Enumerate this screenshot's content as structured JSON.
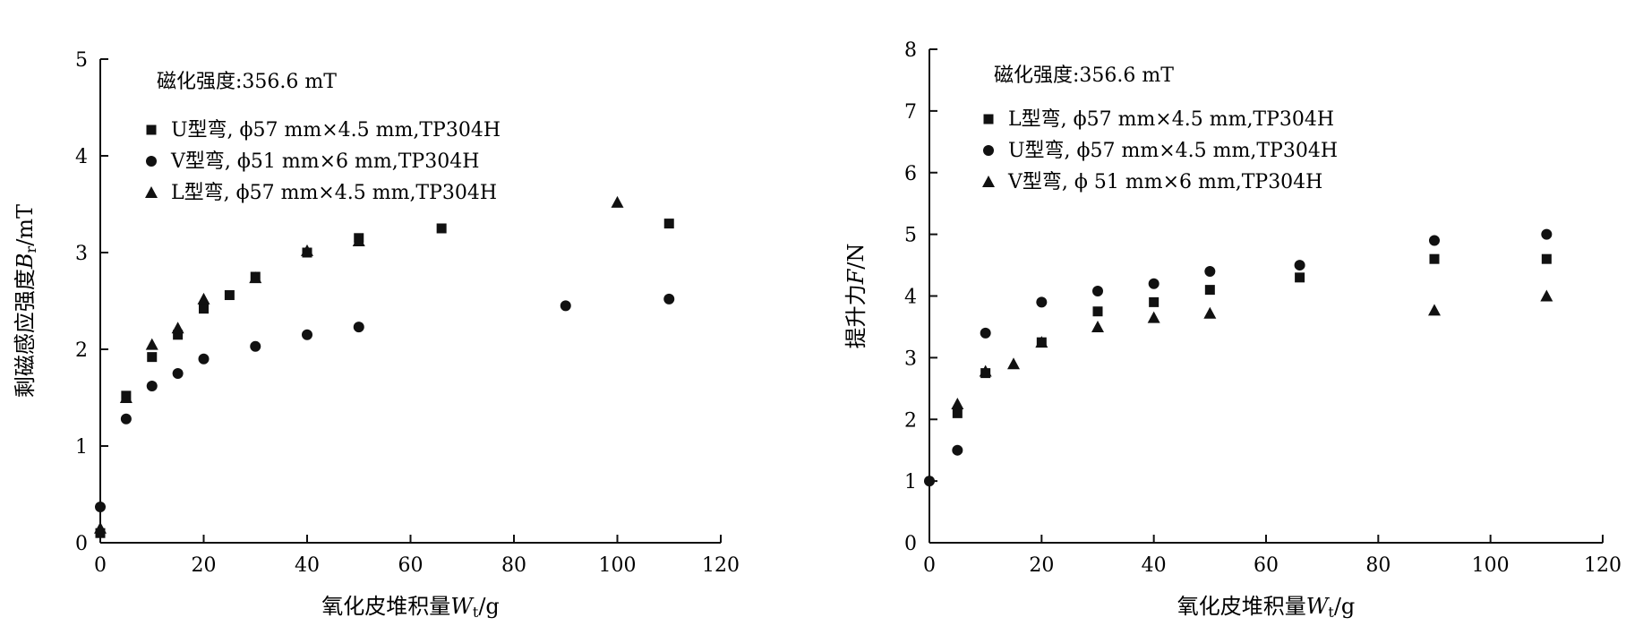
{
  "chart_data": [
    {
      "type": "scatter",
      "annotation": "磁化强度:356.6 mT",
      "xlabel": "氧化皮堆积量Wt/g",
      "xlabel_parts": {
        "main": "氧化皮堆积量",
        "symbol": "W",
        "sub": "t",
        "unit": "/g"
      },
      "ylabel": "剩磁感应强度Br/mT",
      "ylabel_parts": {
        "main": "剩磁感应强度",
        "symbol": "B",
        "sub": "r",
        "unit": "/mT"
      },
      "xlim": [
        0,
        120
      ],
      "ylim": [
        0,
        5
      ],
      "xticks": [
        "0",
        "20",
        "40",
        "60",
        "80",
        "100",
        "120"
      ],
      "yticks": [
        "0",
        "1",
        "2",
        "3",
        "4",
        "5"
      ],
      "grid": false,
      "legend_position": "top-left",
      "series": [
        {
          "name": "U型弯, ϕ57 mm×4.5 mm,TP304H",
          "marker": "square",
          "points": [
            [
              0,
              0.1
            ],
            [
              5,
              1.52
            ],
            [
              10,
              1.92
            ],
            [
              15,
              2.15
            ],
            [
              20,
              2.42
            ],
            [
              25,
              2.56
            ],
            [
              30,
              2.75
            ],
            [
              40,
              3.0
            ],
            [
              50,
              3.15
            ],
            [
              66,
              3.25
            ],
            [
              110,
              3.3
            ]
          ]
        },
        {
          "name": "V型弯, ϕ51 mm×6 mm,TP304H",
          "marker": "circle",
          "points": [
            [
              0,
              0.37
            ],
            [
              5,
              1.28
            ],
            [
              10,
              1.62
            ],
            [
              15,
              1.75
            ],
            [
              20,
              1.9
            ],
            [
              30,
              2.03
            ],
            [
              40,
              2.15
            ],
            [
              50,
              2.23
            ],
            [
              90,
              2.45
            ],
            [
              110,
              2.52
            ]
          ]
        },
        {
          "name": "L型弯, ϕ57 mm×4.5 mm,TP304H",
          "marker": "triangle",
          "points": [
            [
              0,
              0.15
            ],
            [
              5,
              1.5
            ],
            [
              10,
              2.05
            ],
            [
              15,
              2.22
            ],
            [
              20,
              2.52
            ],
            [
              30,
              2.74
            ],
            [
              40,
              3.02
            ],
            [
              50,
              3.12
            ],
            [
              100,
              3.52
            ]
          ]
        }
      ]
    },
    {
      "type": "scatter",
      "annotation": "磁化强度:356.6 mT",
      "xlabel": "氧化皮堆积量Wt/g",
      "xlabel_parts": {
        "main": "氧化皮堆积量",
        "symbol": "W",
        "sub": "t",
        "unit": "/g"
      },
      "ylabel": "提升力F/N",
      "ylabel_parts": {
        "main": "提升力",
        "symbol": "F",
        "sub": "",
        "unit": "/N"
      },
      "xlim": [
        0,
        120
      ],
      "ylim": [
        0,
        8
      ],
      "xticks": [
        "0",
        "20",
        "40",
        "60",
        "80",
        "100",
        "120"
      ],
      "yticks": [
        "0",
        "1",
        "2",
        "3",
        "4",
        "5",
        "6",
        "7",
        "8"
      ],
      "grid": false,
      "legend_position": "top-left",
      "series": [
        {
          "name": "L型弯, ϕ57 mm×4.5 mm,TP304H",
          "marker": "square",
          "points": [
            [
              5,
              2.1
            ],
            [
              10,
              2.75
            ],
            [
              20,
              3.25
            ],
            [
              30,
              3.75
            ],
            [
              40,
              3.9
            ],
            [
              50,
              4.1
            ],
            [
              66,
              4.3
            ],
            [
              90,
              4.6
            ],
            [
              110,
              4.6
            ]
          ]
        },
        {
          "name": "U型弯, ϕ57 mm×4.5 mm,TP304H",
          "marker": "circle",
          "points": [
            [
              0,
              1.0
            ],
            [
              5,
              1.5
            ],
            [
              10,
              3.4
            ],
            [
              20,
              3.9
            ],
            [
              30,
              4.08
            ],
            [
              40,
              4.2
            ],
            [
              50,
              4.4
            ],
            [
              66,
              4.5
            ],
            [
              90,
              4.9
            ],
            [
              110,
              5.0
            ]
          ]
        },
        {
          "name": "V型弯, ϕ 51 mm×6 mm,TP304H",
          "marker": "triangle",
          "points": [
            [
              5,
              2.25
            ],
            [
              10,
              2.78
            ],
            [
              15,
              2.9
            ],
            [
              20,
              3.25
            ],
            [
              30,
              3.5
            ],
            [
              40,
              3.65
            ],
            [
              50,
              3.72
            ],
            [
              90,
              3.77
            ],
            [
              110,
              4.0
            ]
          ]
        }
      ]
    }
  ]
}
